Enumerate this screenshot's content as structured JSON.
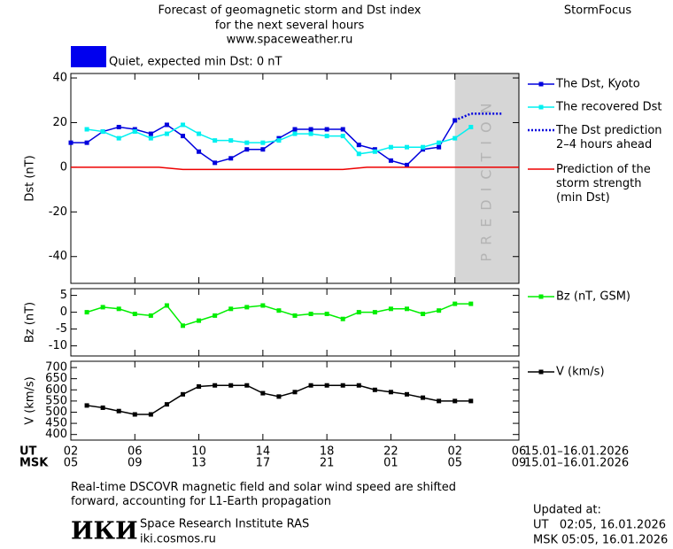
{
  "header": {
    "title_lines": [
      "Forecast of geomagnetic storm and Dst index",
      "for the next several hours",
      "www.spaceweather.ru"
    ],
    "brand": "StormFocus"
  },
  "x_axis": {
    "ut_label": "UT",
    "msk_label": "MSK",
    "ut_ticks": [
      {
        "value": 0,
        "label": "02"
      },
      {
        "value": 4,
        "label": "06"
      },
      {
        "value": 8,
        "label": "10"
      },
      {
        "value": 12,
        "label": "14"
      },
      {
        "value": 16,
        "label": "18"
      },
      {
        "value": 20,
        "label": "22"
      },
      {
        "value": 24,
        "label": "02"
      },
      {
        "value": 28,
        "label": "06"
      }
    ],
    "msk_ticks": [
      {
        "value": 0,
        "label": "05"
      },
      {
        "value": 4,
        "label": "09"
      },
      {
        "value": 8,
        "label": "13"
      },
      {
        "value": 12,
        "label": "17"
      },
      {
        "value": 16,
        "label": "21"
      },
      {
        "value": 20,
        "label": "01"
      },
      {
        "value": 24,
        "label": "05"
      },
      {
        "value": 28,
        "label": "09"
      }
    ],
    "ut_dates": "15.01–16.01.2026",
    "msk_dates": "15.01–16.01.2026"
  },
  "chart_data": [
    {
      "type": "line",
      "ylabel": "Dst (nT)",
      "xlim": [
        0,
        28
      ],
      "ylim": [
        -52,
        42
      ],
      "yticks": [
        -40,
        -20,
        0,
        20,
        40
      ],
      "status": {
        "label": "Quiet, expected min Dst: 0 nT",
        "color": "#0000ee"
      },
      "prediction_region": [
        24,
        28
      ],
      "prediction_label": "PREDICTION",
      "series": [
        {
          "name": "The Dst, Kyoto",
          "color": "#0000dd",
          "marker": true,
          "dash": false,
          "x": [
            0,
            1,
            2,
            3,
            4,
            5,
            6,
            7,
            8,
            9,
            10,
            11,
            12,
            13,
            14,
            15,
            16,
            17,
            18,
            19,
            20,
            21,
            22,
            23,
            24
          ],
          "values": [
            11,
            11,
            16,
            18,
            17,
            15,
            19,
            14,
            7,
            2,
            4,
            8,
            8,
            13,
            17,
            17,
            17,
            17,
            10,
            8,
            3,
            1,
            8,
            9,
            21
          ]
        },
        {
          "name": "The recovered Dst",
          "color": "#00f0f0",
          "marker": true,
          "dash": false,
          "x": [
            1,
            2,
            3,
            4,
            5,
            6,
            7,
            8,
            9,
            10,
            11,
            12,
            13,
            14,
            15,
            16,
            17,
            18,
            19,
            20,
            21,
            22,
            23,
            24,
            25
          ],
          "values": [
            17,
            16,
            13,
            16,
            13,
            15,
            19,
            15,
            12,
            12,
            11,
            11,
            12,
            15,
            15,
            14,
            14,
            6,
            7,
            9,
            9,
            9,
            11,
            13,
            18
          ]
        },
        {
          "name": "The Dst prediction\n2–4 hours ahead",
          "color": "#0000dd",
          "marker": false,
          "dash": true,
          "x": [
            24,
            25,
            26,
            27
          ],
          "values": [
            21,
            24,
            24,
            24
          ]
        },
        {
          "name": "Prediction of the\nstorm strength\n(min Dst)",
          "color": "#ee0000",
          "marker": false,
          "dash": false,
          "x": [
            0,
            5.5,
            7,
            17,
            18.5,
            28
          ],
          "values": [
            0,
            0,
            -1,
            -1,
            0,
            0
          ]
        }
      ]
    },
    {
      "type": "line",
      "ylabel": "Bz (nT)",
      "xlim": [
        0,
        28
      ],
      "ylim": [
        -13,
        7
      ],
      "yticks": [
        -10,
        -5,
        0,
        5
      ],
      "series": [
        {
          "name": "Bz (nT, GSM)",
          "color": "#00ee00",
          "marker": true,
          "dash": false,
          "x": [
            1,
            2,
            3,
            4,
            5,
            6,
            7,
            8,
            9,
            10,
            11,
            12,
            13,
            14,
            15,
            16,
            17,
            18,
            19,
            20,
            21,
            22,
            23,
            24,
            25
          ],
          "values": [
            0,
            1.5,
            1,
            -0.5,
            -1,
            2,
            -4,
            -2.5,
            -1,
            1,
            1.5,
            2,
            0.5,
            -1,
            -0.5,
            -0.5,
            -2,
            0,
            0,
            1,
            1,
            -0.5,
            0.5,
            2.5,
            2.5
          ]
        }
      ]
    },
    {
      "type": "line",
      "ylabel": "V (km/s)",
      "xlim": [
        0,
        28
      ],
      "ylim": [
        375,
        728
      ],
      "yticks": [
        400,
        450,
        500,
        550,
        600,
        650,
        700
      ],
      "series": [
        {
          "name": "V (km/s)",
          "color": "#000000",
          "marker": true,
          "dash": false,
          "x": [
            1,
            2,
            3,
            4,
            5,
            6,
            7,
            8,
            9,
            10,
            11,
            12,
            13,
            14,
            15,
            16,
            17,
            18,
            19,
            20,
            21,
            22,
            23,
            24,
            25
          ],
          "values": [
            530,
            520,
            505,
            490,
            490,
            535,
            580,
            615,
            620,
            620,
            620,
            585,
            570,
            590,
            620,
            620,
            620,
            620,
            600,
            590,
            580,
            565,
            550,
            550,
            550
          ]
        }
      ]
    }
  ],
  "footer": {
    "note": "Real-time DSCOVR magnetic field and solar wind speed are shifted\nforward, accounting for L1-Earth propagation",
    "logo": "ИКИ",
    "institute": "Space Research Institute RAS",
    "site": "iki.cosmos.ru",
    "updated_title": "Updated at:",
    "updated_ut": "UT   02:05, 16.01.2026",
    "updated_msk": "MSK 05:05, 16.01.2026"
  }
}
